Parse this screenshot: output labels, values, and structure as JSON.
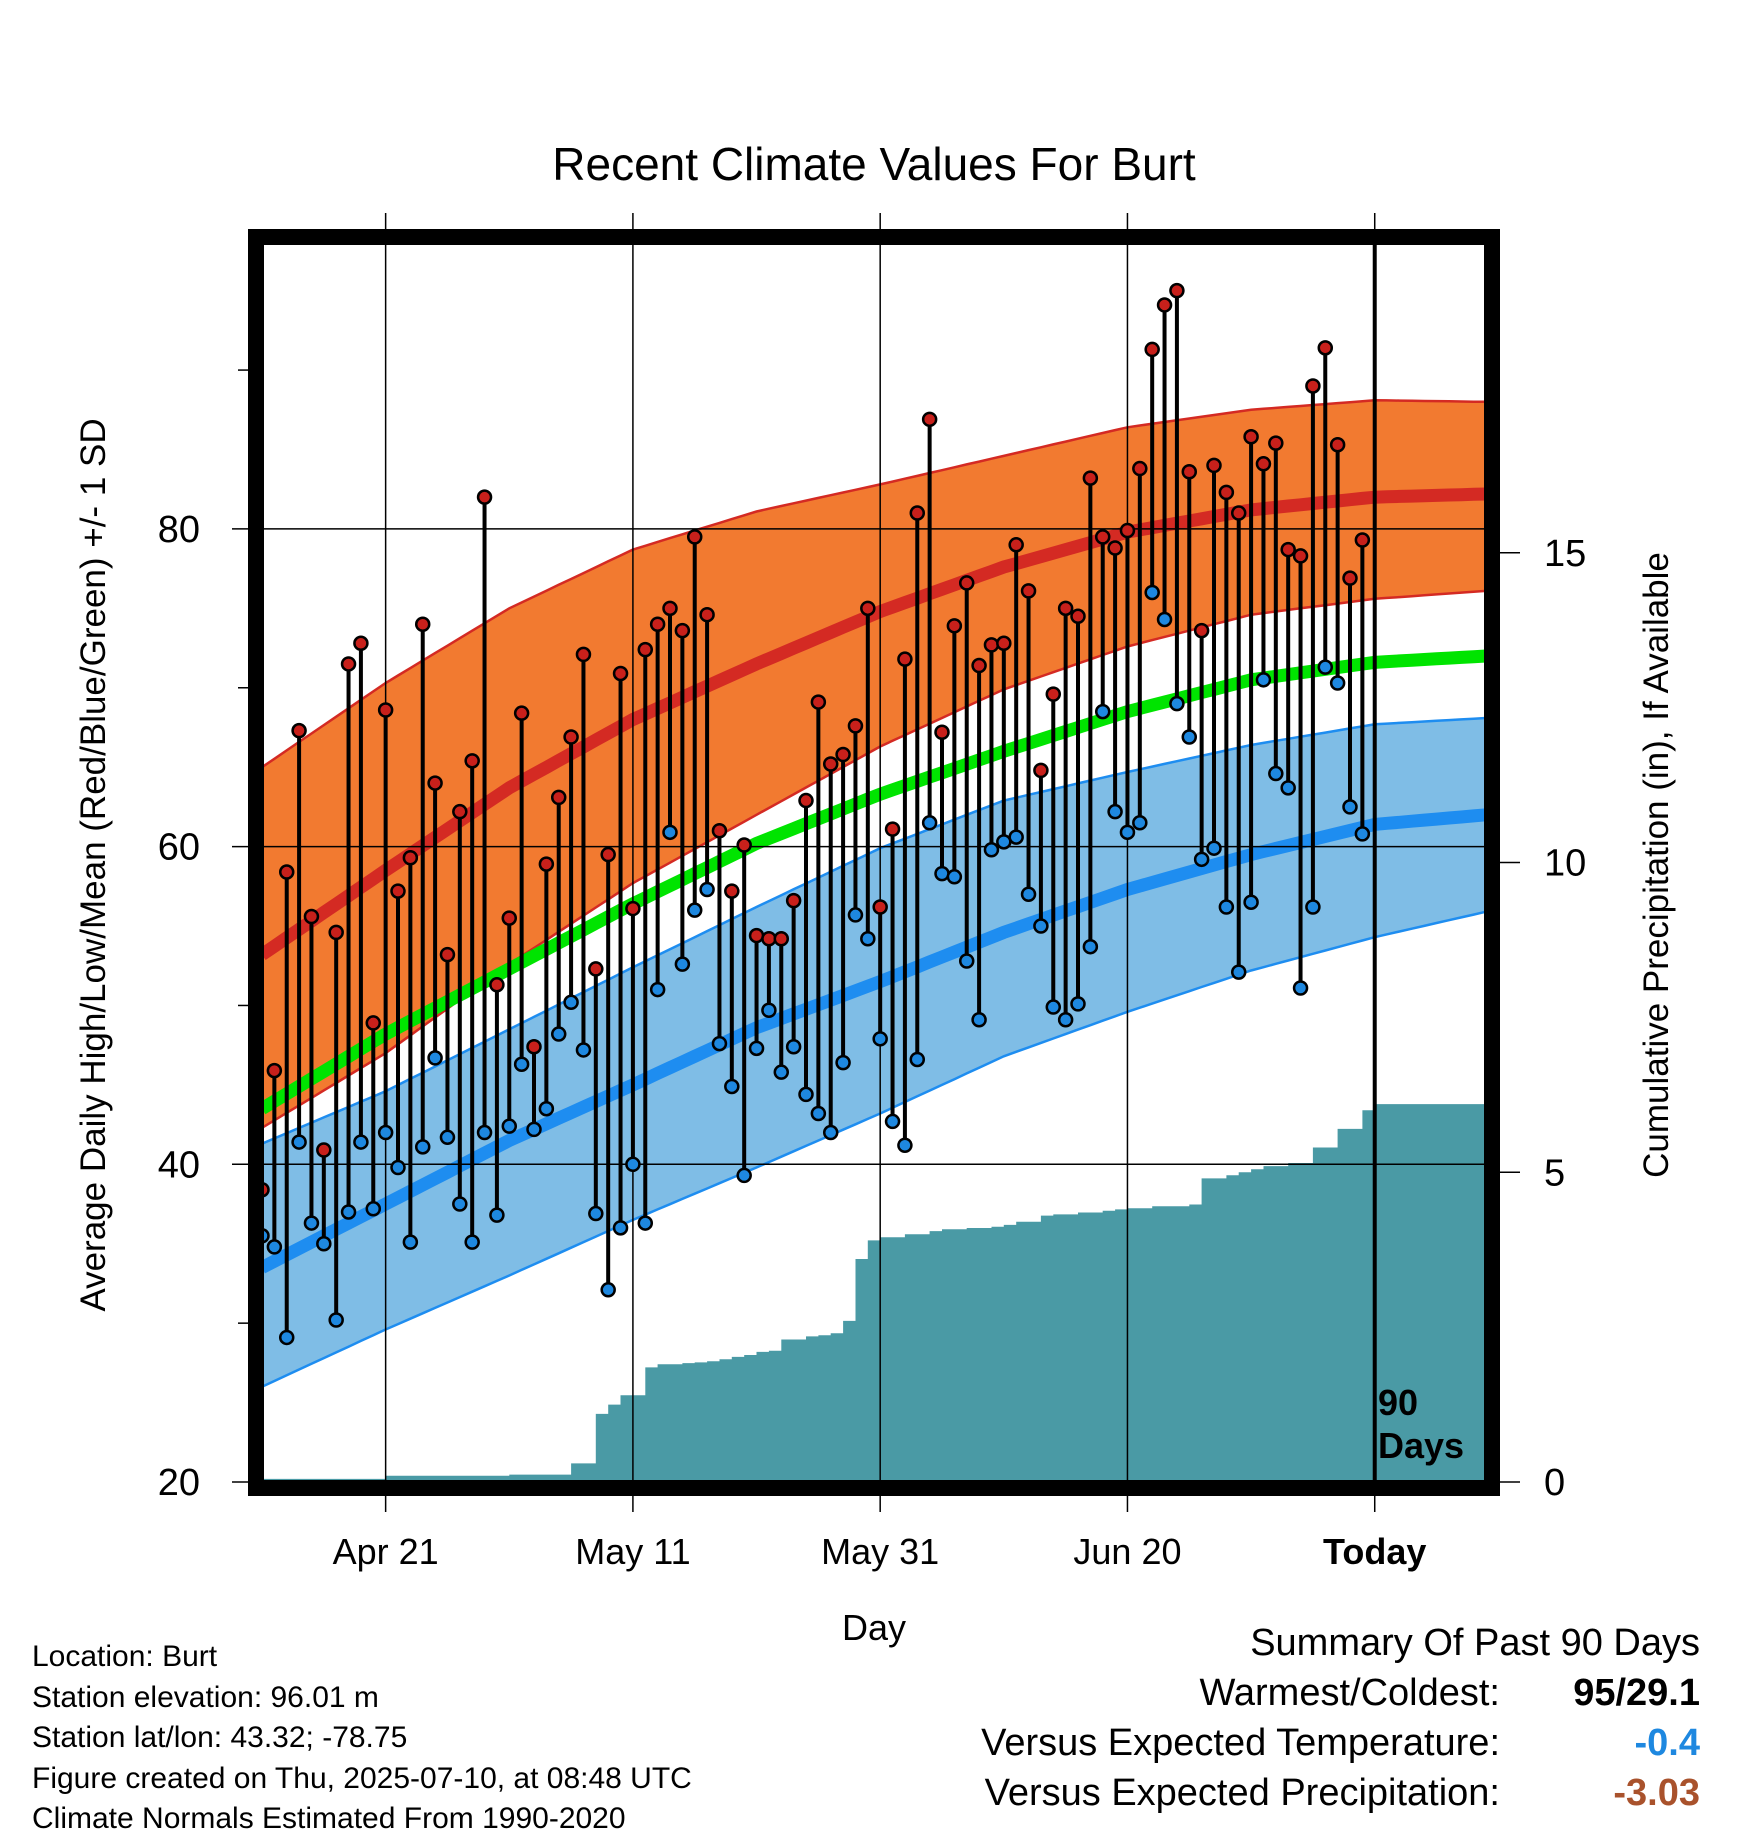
{
  "chart_data": {
    "type": "line",
    "title": "Recent Climate Values For Burt",
    "xlabel": "Day",
    "ylabel": "Average Daily High/Low/Mean (Red/Blue/Green) +/- 1 SD",
    "y2label": "Cumulative Precipitation (in), If Available",
    "xlim": [
      -19,
      9
    ],
    "ylim": [
      20,
      98
    ],
    "y2lim": [
      0,
      20
    ],
    "x_unit": "days relative to Today",
    "xticks": [
      {
        "day": -80,
        "label": "Apr 21"
      },
      {
        "day": -60,
        "label": "May 11"
      },
      {
        "day": -40,
        "label": "May 31"
      },
      {
        "day": -20,
        "label": "Jun 20"
      },
      {
        "day": 0,
        "label": "Today"
      }
    ],
    "x_range_days": [
      -90,
      9
    ],
    "yticks": [
      20,
      40,
      60,
      80
    ],
    "yminor": [
      30,
      50,
      70,
      90
    ],
    "y2ticks": [
      0,
      5,
      10,
      15
    ],
    "grid": true,
    "today_marker_label": [
      "90",
      "Days"
    ],
    "normals": {
      "days": [
        -90,
        -80,
        -70,
        -60,
        -50,
        -40,
        -30,
        -20,
        -10,
        0,
        9
      ],
      "high_mean": [
        53.2,
        58.5,
        63.7,
        68.0,
        71.5,
        74.8,
        77.6,
        79.8,
        81.2,
        82.0,
        82.2
      ],
      "high_upper": [
        65.0,
        70.3,
        75.0,
        78.7,
        81.1,
        82.8,
        84.6,
        86.4,
        87.5,
        88.1,
        88.0
      ],
      "high_lower": [
        42.3,
        47.0,
        52.6,
        57.7,
        62.0,
        66.3,
        69.9,
        72.6,
        74.6,
        75.6,
        76.1
      ],
      "mean_mean": [
        43.5,
        48.2,
        52.3,
        56.4,
        60.2,
        63.3,
        66.0,
        68.5,
        70.5,
        71.6,
        72.0
      ],
      "low_mean": [
        33.5,
        37.5,
        41.5,
        45.0,
        48.6,
        51.5,
        54.6,
        57.3,
        59.5,
        61.4,
        62.0
      ],
      "low_upper": [
        41.3,
        44.6,
        48.5,
        52.4,
        56.2,
        59.9,
        62.9,
        64.7,
        66.4,
        67.7,
        68.1
      ],
      "low_lower": [
        26.0,
        29.6,
        33.0,
        36.5,
        39.8,
        43.2,
        46.8,
        49.6,
        52.2,
        54.3,
        55.9
      ]
    },
    "series": [
      {
        "name": "High",
        "values": [
          38.4,
          45.9,
          58.4,
          67.3,
          55.6,
          40.9,
          54.6,
          71.5,
          72.8,
          48.9,
          68.6,
          57.2,
          59.3,
          74.0,
          64.0,
          53.2,
          62.2,
          65.4,
          82.0,
          51.3,
          55.5,
          68.4,
          47.4,
          58.9,
          63.1,
          66.9,
          72.1,
          52.3,
          59.5,
          70.9,
          56.1,
          72.4,
          74.0,
          75.0,
          73.6,
          79.5,
          74.6,
          61.0,
          57.2,
          60.1,
          54.4,
          54.2,
          54.2,
          56.6,
          62.9,
          69.1,
          65.2,
          65.8,
          67.6,
          75.0,
          56.2,
          61.1,
          71.8,
          81.0,
          86.9,
          67.2,
          73.9,
          76.6,
          71.4,
          72.7,
          72.8,
          79.0,
          76.1,
          64.8,
          69.6,
          75.0,
          74.5,
          83.2,
          79.5,
          78.8,
          79.9,
          83.8,
          91.3,
          94.1,
          95.0,
          83.6,
          73.6,
          84.0,
          82.3,
          81.0,
          85.8,
          84.1,
          85.4,
          78.7,
          78.3,
          89.0,
          91.4,
          85.3,
          76.9,
          79.3
        ]
      },
      {
        "name": "Low",
        "values": [
          35.5,
          34.8,
          29.1,
          41.4,
          36.3,
          35.0,
          30.2,
          37.0,
          41.4,
          37.2,
          42.0,
          39.8,
          35.1,
          41.1,
          46.7,
          41.7,
          37.5,
          35.1,
          42.0,
          36.8,
          42.4,
          46.3,
          42.2,
          43.5,
          48.2,
          50.2,
          47.2,
          36.9,
          32.1,
          36.0,
          40.0,
          36.3,
          51.0,
          60.9,
          52.6,
          56.0,
          57.3,
          47.6,
          44.9,
          39.3,
          47.3,
          49.7,
          45.8,
          47.4,
          44.4,
          43.2,
          42.0,
          46.4,
          55.7,
          54.2,
          47.9,
          42.7,
          41.2,
          46.6,
          61.5,
          58.3,
          58.1,
          52.8,
          49.1,
          59.8,
          60.3,
          60.6,
          57.0,
          55.0,
          49.9,
          49.1,
          50.1,
          53.7,
          68.5,
          62.2,
          60.9,
          61.5,
          76.0,
          74.3,
          69.0,
          66.9,
          59.2,
          59.9,
          56.2,
          52.1,
          56.5,
          70.5,
          64.6,
          63.7,
          51.1,
          56.2,
          71.3,
          70.3,
          62.5,
          60.8
        ]
      },
      {
        "name": "Cumulative Precipitation",
        "days": [
          -90,
          -80,
          -70,
          -65,
          -63,
          -62,
          -61,
          -59,
          -58,
          -56,
          -55,
          -54,
          -53,
          -52,
          -51,
          -50,
          -49,
          -48,
          -46,
          -45,
          -44,
          -43,
          -42,
          -41,
          -40,
          -38,
          -36,
          -35,
          -33,
          -31,
          -30,
          -29,
          -27,
          -26,
          -24,
          -22,
          -21,
          -20,
          -18,
          -15,
          -14,
          -12,
          -11,
          -10,
          -9,
          -7,
          -5,
          -3,
          -1,
          0,
          9
        ],
        "values": [
          0.05,
          0.1,
          0.12,
          0.3,
          1.1,
          1.25,
          1.4,
          1.85,
          1.9,
          1.92,
          1.93,
          1.95,
          1.98,
          2.02,
          2.05,
          2.1,
          2.12,
          2.3,
          2.35,
          2.37,
          2.4,
          2.6,
          3.6,
          3.9,
          3.95,
          4.0,
          4.05,
          4.08,
          4.1,
          4.12,
          4.15,
          4.2,
          4.3,
          4.32,
          4.35,
          4.38,
          4.4,
          4.42,
          4.45,
          4.48,
          4.9,
          4.95,
          5.0,
          5.05,
          5.1,
          5.15,
          5.4,
          5.7,
          6.0,
          6.1,
          6.1
        ]
      }
    ]
  },
  "info": {
    "location": "Location: Burt",
    "elevation": "Station elevation: 96.01 m",
    "latlon": "Station lat/lon: 43.32; -78.75",
    "created": "Figure created on Thu, 2025-07-10, at 08:48 UTC",
    "normals": "Climate Normals Estimated From 1990-2020"
  },
  "summary": {
    "heading": "Summary Of Past 90 Days",
    "warmest_label": "Warmest/Coldest:",
    "warmest_value": "95/29.1",
    "temp_label": "Versus Expected Temperature:",
    "temp_value": "-0.4",
    "precip_label": "Versus Expected Precipitation:",
    "precip_value": "-3.03"
  },
  "colors": {
    "high_band": "#f27a30",
    "high_line": "#d42a23",
    "low_band": "#7fbde6",
    "low_line": "#1e8df0",
    "mean_line": "#00e400",
    "precip": "#4a9aa5",
    "high_dot": "#c8201b",
    "low_dot": "#1e88e0",
    "temp_delta": "#1e88e0",
    "precip_delta": "#a9522c"
  }
}
